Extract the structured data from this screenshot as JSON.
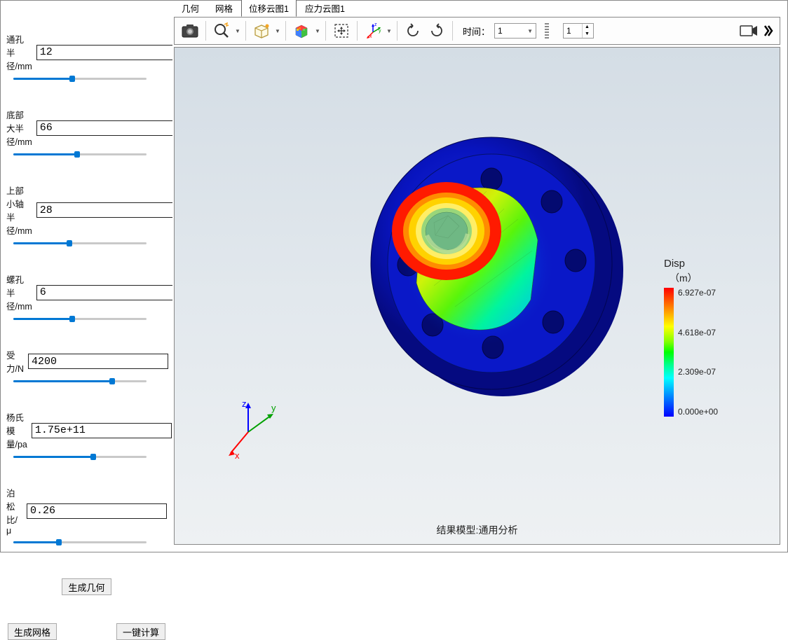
{
  "sidebar": {
    "params": [
      {
        "label": "通孔半径/mm",
        "value": "12",
        "slider_pct": 44
      },
      {
        "label": "底部大半径/mm",
        "value": "66",
        "slider_pct": 48
      },
      {
        "label": "上部小轴半径/mm",
        "value": "28",
        "slider_pct": 42
      },
      {
        "label": "螺孔半径/mm",
        "value": "6",
        "slider_pct": 44
      },
      {
        "label": "受力/N",
        "value": "4200",
        "slider_pct": 74
      },
      {
        "label": "杨氏模量/pa",
        "value": "1.75e+11",
        "slider_pct": 60
      },
      {
        "label": "泊松比/μ",
        "value": "0.26",
        "slider_pct": 34
      }
    ],
    "btn_generate_geom": "生成几何",
    "btn_generate_mesh": "生成网格",
    "btn_compute": "一键计算"
  },
  "tabs": [
    {
      "label": "几何",
      "active": false
    },
    {
      "label": "网格",
      "active": false
    },
    {
      "label": "位移云图1",
      "active": true
    },
    {
      "label": "应力云图1",
      "active": false
    }
  ],
  "toolbar": {
    "time_label": "时间：",
    "time_value": "1",
    "spinner_value": "1"
  },
  "viewport": {
    "footer": "结果模型:通用分析",
    "triad": {
      "x": "x",
      "y": "y",
      "z": "z",
      "x_color": "#ff0000",
      "y_color": "#00a000",
      "z_color": "#0000ff"
    }
  },
  "legend": {
    "title": "Disp",
    "unit": "（m）",
    "ticks": [
      "6.927e-07",
      "4.618e-07",
      "2.309e-07",
      "0.000e+00"
    ],
    "gradient_colors": [
      "#ff0000",
      "#ffff00",
      "#00ff00",
      "#00ffff",
      "#0000ff"
    ]
  },
  "model": {
    "flange_color": "#0814bf",
    "flange_edge": "#05357d",
    "hole_color": "#0a0a8a",
    "shaft_gradient": [
      "#ff1a00",
      "#ff8c00",
      "#ffee00",
      "#6eff00",
      "#00ff55",
      "#00e4ff",
      "#009bff"
    ],
    "center_ring_outer": "#ff1a00",
    "center_ring_mid": "#ffd200",
    "center_ring_inner": "#7ad48a",
    "background_gradient": [
      "#d4dde5",
      "#eef1f3"
    ]
  }
}
